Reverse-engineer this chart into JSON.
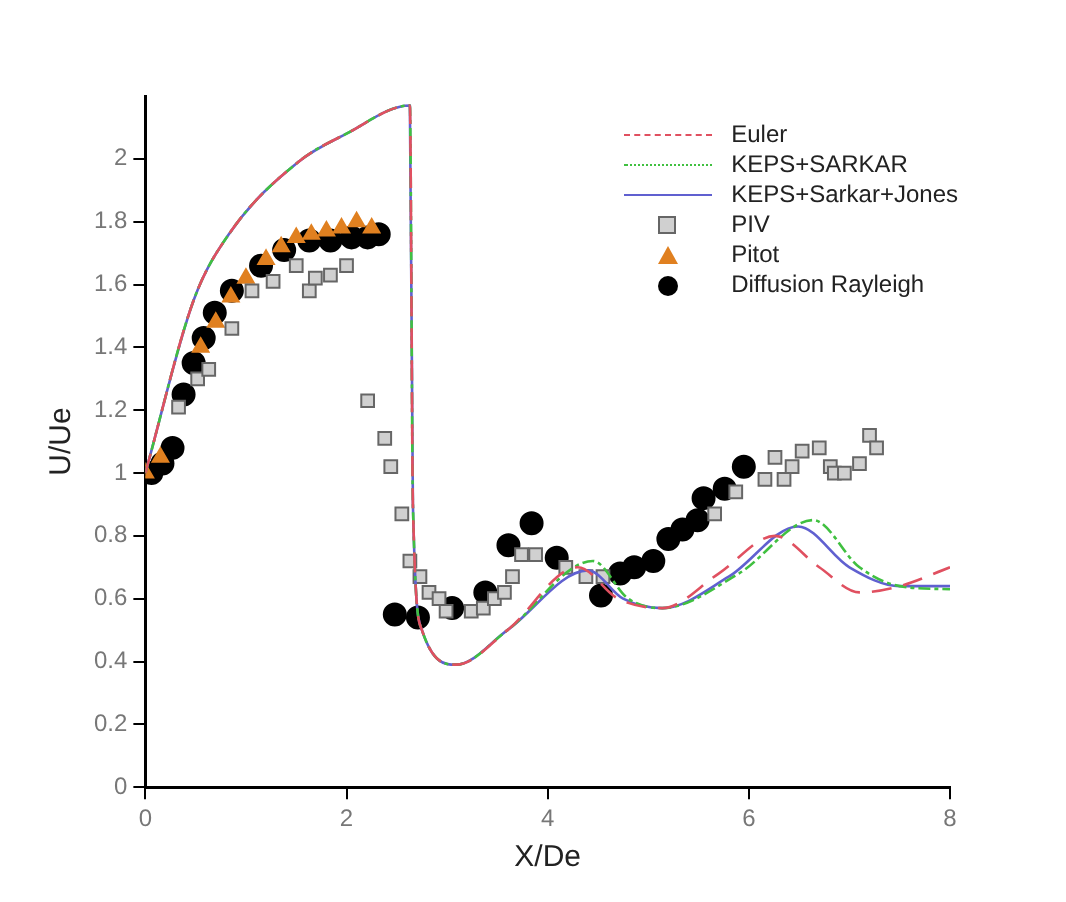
{
  "chart_data": {
    "type": "line",
    "xlabel": "X/De",
    "ylabel": "U/Ue",
    "xlim": [
      0,
      8
    ],
    "ylim": [
      0,
      2.2
    ],
    "xticks": [
      0,
      2,
      4,
      6,
      8
    ],
    "yticks": [
      0,
      0.2,
      0.4,
      0.6,
      0.8,
      1,
      1.2,
      1.4,
      1.6,
      1.8,
      2
    ],
    "grid": false,
    "legend": "top right",
    "series": [
      {
        "name": "Euler",
        "type": "line",
        "color": "#e05060",
        "line_style": "dashed",
        "marker": "none",
        "x": [
          0,
          0.48,
          0.83,
          1.52,
          2.0,
          2.63,
          2.66,
          2.75,
          3.09,
          3.6,
          4.3,
          4.7,
          5.14,
          5.7,
          6.26,
          6.7,
          7.1,
          7.5,
          8
        ],
        "values": [
          1,
          1.55,
          1.76,
          1.99,
          2.08,
          2.17,
          0.9,
          0.5,
          0.39,
          0.5,
          0.7,
          0.6,
          0.57,
          0.68,
          0.8,
          0.7,
          0.62,
          0.64,
          0.7
        ]
      },
      {
        "name": "KEPS+SARKAR",
        "type": "line",
        "color": "#40c040",
        "line_style": "dotted",
        "marker": "none",
        "x": [
          0,
          0.48,
          0.83,
          1.52,
          2.0,
          2.63,
          2.66,
          2.75,
          3.09,
          3.6,
          4.45,
          4.8,
          5.14,
          5.9,
          6.64,
          7.1,
          7.5,
          8
        ],
        "values": [
          1,
          1.55,
          1.76,
          1.99,
          2.08,
          2.17,
          0.9,
          0.5,
          0.39,
          0.5,
          0.72,
          0.6,
          0.57,
          0.68,
          0.85,
          0.7,
          0.64,
          0.63
        ]
      },
      {
        "name": "KEPS+Sarkar+Jones",
        "type": "line",
        "color": "#6060d0",
        "line_style": "solid",
        "marker": "none",
        "x": [
          0,
          0.48,
          0.83,
          1.52,
          2.0,
          2.63,
          2.66,
          2.75,
          3.09,
          3.6,
          4.4,
          4.75,
          5.14,
          5.8,
          6.49,
          7.0,
          7.5,
          8
        ],
        "values": [
          1,
          1.55,
          1.76,
          1.99,
          2.08,
          2.17,
          0.9,
          0.5,
          0.39,
          0.5,
          0.69,
          0.6,
          0.57,
          0.67,
          0.83,
          0.7,
          0.64,
          0.64
        ]
      },
      {
        "name": "PIV",
        "type": "scatter",
        "color": "#d0d0d0",
        "marker": "square",
        "x": [
          0.33,
          0.52,
          0.63,
          0.86,
          1.06,
          1.27,
          1.5,
          1.63,
          1.69,
          1.84,
          2.0,
          2.21,
          2.38,
          2.44,
          2.55,
          2.63,
          2.73,
          2.82,
          2.92,
          2.99,
          3.24,
          3.36,
          3.47,
          3.57,
          3.65,
          3.74,
          3.88,
          4.18,
          4.38,
          4.55,
          5.66,
          5.87,
          6.16,
          6.26,
          6.35,
          6.43,
          6.53,
          6.7,
          6.81,
          6.85,
          6.95,
          7.1,
          7.2,
          7.27
        ],
        "values": [
          1.21,
          1.3,
          1.33,
          1.46,
          1.58,
          1.61,
          1.66,
          1.58,
          1.62,
          1.63,
          1.66,
          1.23,
          1.11,
          1.02,
          0.87,
          0.72,
          0.67,
          0.62,
          0.6,
          0.56,
          0.56,
          0.57,
          0.6,
          0.62,
          0.67,
          0.74,
          0.74,
          0.7,
          0.67,
          0.67,
          0.87,
          0.94,
          0.98,
          1.05,
          0.98,
          1.02,
          1.07,
          1.08,
          1.02,
          1.0,
          1.0,
          1.03,
          1.12,
          1.08
        ]
      },
      {
        "name": "Pitot",
        "type": "scatter",
        "color": "#e08020",
        "marker": "triangle",
        "x": [
          0,
          0.15,
          0.3,
          0.45,
          0.55,
          0.7,
          0.85,
          1.0,
          1.2,
          1.35,
          1.5,
          1.65,
          1.8,
          1.95,
          2.1,
          2.25
        ],
        "values": [
          1.0,
          1.05,
          null,
          null,
          1.4,
          1.48,
          1.56,
          1.62,
          1.68,
          1.72,
          1.75,
          1.76,
          1.77,
          1.78,
          1.8,
          1.78
        ]
      },
      {
        "name": "Diffusion Rayleigh",
        "type": "scatter",
        "color": "#000000",
        "marker": "circle",
        "x": [
          0.06,
          0.17,
          0.27,
          0.38,
          0.48,
          0.58,
          0.69,
          0.86,
          1.15,
          1.38,
          1.63,
          1.84,
          2.05,
          2.21,
          2.32,
          2.48,
          2.71,
          3.05,
          3.38,
          3.61,
          3.84,
          4.09,
          4.3,
          4.53,
          4.72,
          4.86,
          5.05,
          5.2,
          5.34,
          5.49,
          5.55,
          5.76,
          5.95
        ],
        "values": [
          1.0,
          1.03,
          1.08,
          1.25,
          1.35,
          1.43,
          1.51,
          1.58,
          1.66,
          1.71,
          1.74,
          1.74,
          1.75,
          1.75,
          1.76,
          0.55,
          0.54,
          0.57,
          0.62,
          0.77,
          0.84,
          0.73,
          null,
          0.61,
          0.68,
          0.7,
          0.72,
          0.79,
          0.82,
          0.85,
          0.92,
          0.95,
          1.02
        ]
      }
    ]
  }
}
